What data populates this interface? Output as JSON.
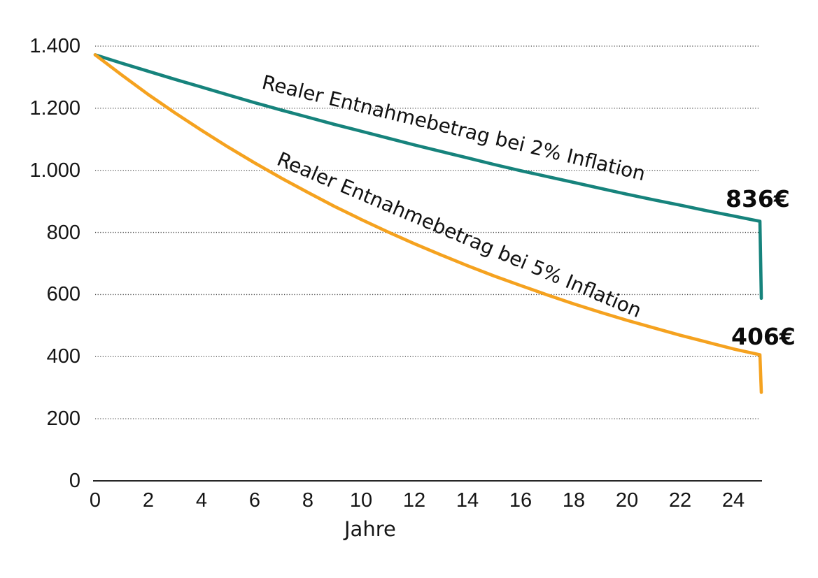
{
  "chart_data": {
    "type": "line",
    "title": "",
    "xlabel": "Jahre",
    "ylabel": "",
    "xlim": [
      0,
      25.2
    ],
    "ylim": [
      0,
      1400
    ],
    "grid": "horizontal-dotted",
    "legend_position": "inline-rotated-labels",
    "x_ticks": [
      0,
      2,
      4,
      6,
      8,
      10,
      12,
      14,
      16,
      18,
      20,
      22,
      24
    ],
    "y_ticks": [
      {
        "value": 0,
        "label": "0"
      },
      {
        "value": 200,
        "label": "200"
      },
      {
        "value": 400,
        "label": "400"
      },
      {
        "value": 600,
        "label": "600"
      },
      {
        "value": 800,
        "label": "800"
      },
      {
        "value": 1000,
        "label": "1.000"
      },
      {
        "value": 1200,
        "label": "1.200"
      },
      {
        "value": 1400,
        "label": "1.400"
      }
    ],
    "x_years": [
      0,
      1,
      2,
      3,
      4,
      5,
      6,
      7,
      8,
      9,
      10,
      11,
      12,
      13,
      14,
      15,
      16,
      17,
      18,
      19,
      20,
      21,
      22,
      23,
      24,
      25
    ],
    "series": [
      {
        "name": "real-withdrawal-2pct-inflation",
        "label": "Realer Entnahmebetrag bei 2% Inflation",
        "color": "#16837C",
        "end_label": "836€",
        "end_value": 836,
        "final_drop_value": 588,
        "values_by_year": [
          1372,
          1345,
          1319,
          1293,
          1268,
          1243,
          1218,
          1194,
          1171,
          1148,
          1126,
          1104,
          1082,
          1061,
          1040,
          1019,
          999,
          980,
          961,
          942,
          923,
          905,
          888,
          870,
          853,
          836
        ]
      },
      {
        "name": "real-withdrawal-5pct-inflation",
        "label": "Realer Entnahmebetrag bei 5% Inflation",
        "color": "#F5A21F",
        "end_label": "406€",
        "end_value": 406,
        "final_drop_value": 285,
        "values_by_year": [
          1372,
          1307,
          1244,
          1185,
          1129,
          1075,
          1024,
          975,
          929,
          884,
          842,
          802,
          764,
          728,
          693,
          660,
          629,
          599,
          570,
          543,
          517,
          493,
          469,
          447,
          425,
          406
        ]
      }
    ],
    "axis_color": "#262626",
    "gridline_color": "#4a4a4a",
    "text_color": "#111111"
  }
}
